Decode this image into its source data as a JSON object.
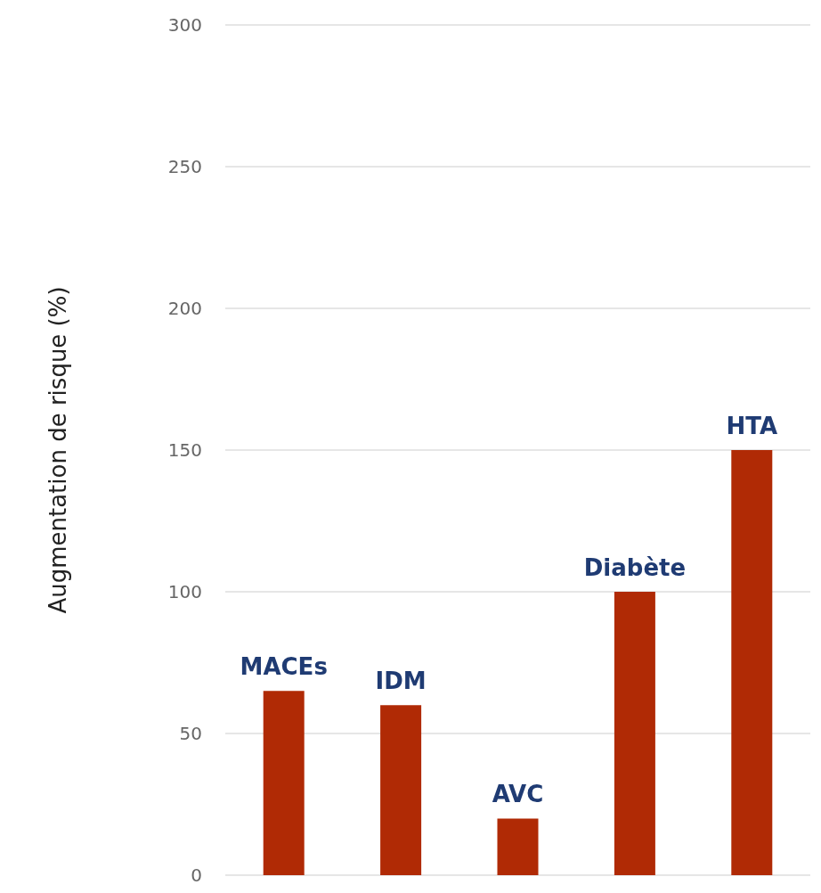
{
  "chart_data": {
    "type": "bar",
    "ylabel": "Augmentation de risque (%)",
    "categories": [
      "MACEs",
      "IDM",
      "AVC",
      "Diabète",
      "HTA"
    ],
    "values": [
      65,
      60,
      20,
      100,
      150
    ],
    "color": "#b02a05",
    "ylim": [
      0,
      300
    ],
    "yticks": [
      0,
      50,
      100,
      150,
      200,
      250,
      300
    ],
    "grid": "y",
    "tick_labels": "y"
  }
}
